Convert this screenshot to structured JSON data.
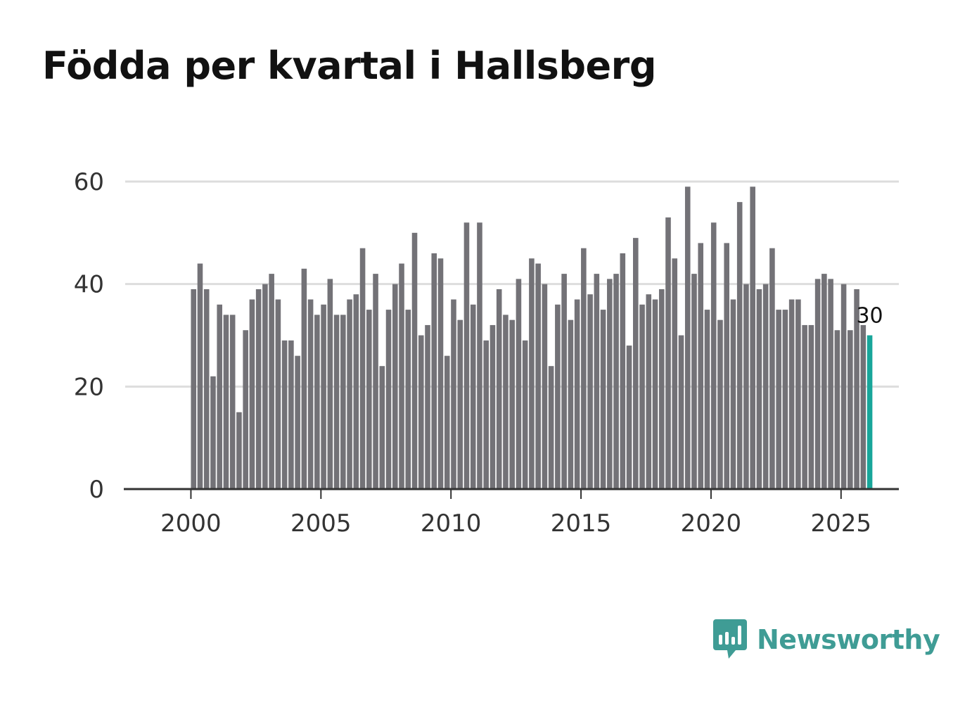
{
  "title": "Födda per kvartal i Hallsberg",
  "brand": {
    "name": "Newsworthy"
  },
  "colors": {
    "bar": "#737277",
    "highlight": "#18a69a",
    "grid": "#dddddd",
    "axis": "#333333",
    "brand": "#3f9c95"
  },
  "chart_data": {
    "type": "bar",
    "title": "Födda per kvartal i Hallsberg",
    "xlabel": "",
    "ylabel": "",
    "x_start": 2000.0,
    "x_step": 0.25,
    "xlim": [
      1997.5,
      2027.25
    ],
    "ylim": [
      0,
      60
    ],
    "yticks": [
      0,
      20,
      40,
      60
    ],
    "xticks": [
      2000,
      2005,
      2010,
      2015,
      2020,
      2025
    ],
    "grid": true,
    "values": [
      39,
      44,
      39,
      22,
      36,
      34,
      34,
      15,
      31,
      37,
      39,
      40,
      42,
      37,
      29,
      29,
      26,
      43,
      37,
      34,
      36,
      41,
      34,
      34,
      37,
      38,
      47,
      35,
      42,
      24,
      35,
      40,
      44,
      35,
      50,
      30,
      32,
      46,
      45,
      26,
      37,
      33,
      52,
      36,
      52,
      29,
      32,
      39,
      34,
      33,
      41,
      29,
      45,
      44,
      40,
      24,
      36,
      42,
      33,
      37,
      47,
      38,
      42,
      35,
      41,
      42,
      46,
      28,
      49,
      36,
      38,
      37,
      39,
      53,
      45,
      30,
      59,
      42,
      48,
      35,
      52,
      33,
      48,
      37,
      56,
      40,
      59,
      39,
      40,
      47,
      35,
      35,
      37,
      37,
      32,
      32,
      41,
      42,
      41,
      31,
      40,
      31,
      39,
      32,
      30
    ],
    "highlight_last": true,
    "last_label": "30"
  }
}
